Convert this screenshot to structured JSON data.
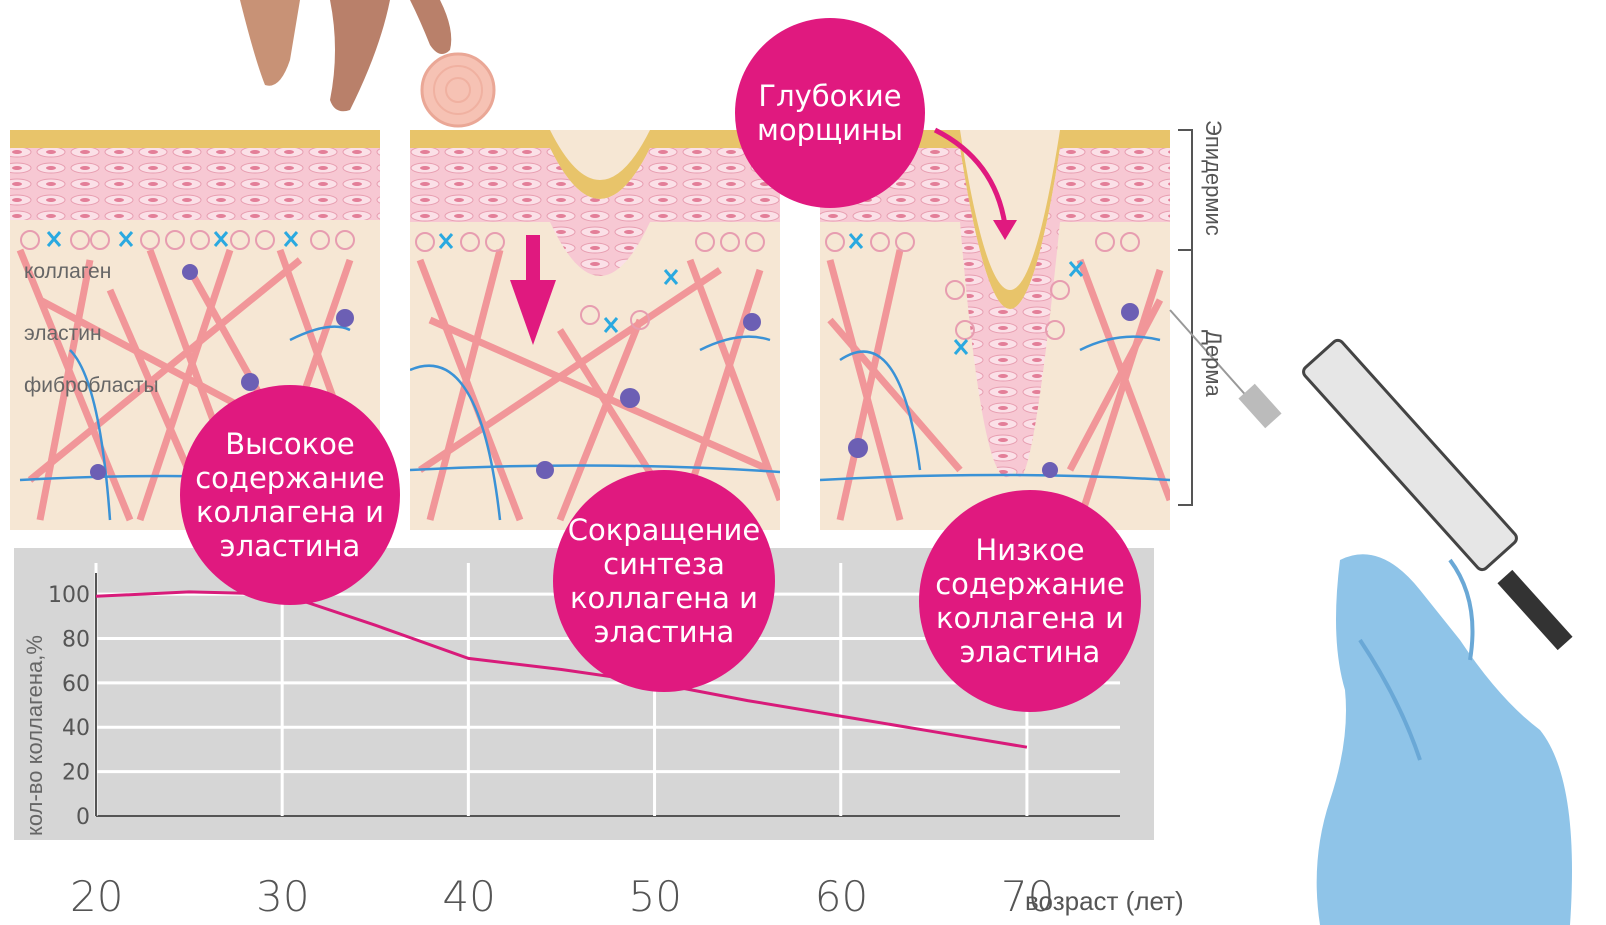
{
  "colors": {
    "accent": "#e0197f",
    "chart_bg": "#d6d6d6",
    "grid": "#ffffff",
    "line": "#d81b7a",
    "skin": "#f6e7d4",
    "epidermis": "#f1b9c8",
    "gold": "#e8c46a",
    "fiber": "#f07b86",
    "vessel": "#3a92d6",
    "cell": "#6c5fb4"
  },
  "bubbles": {
    "high": [
      "Высокое",
      "содержание",
      "коллагена и",
      "эластина"
    ],
    "reduce": [
      "Сокращение",
      "синтеза",
      "коллагена и",
      "эластина"
    ],
    "low": [
      "Низкое",
      "содержание",
      "коллагена и",
      "эластина"
    ],
    "wrinkles": [
      "Глубокие",
      "морщины"
    ]
  },
  "skin_labels": {
    "collagen": "коллаген",
    "elastin": "эластин",
    "fibroblasts": "фибробласты"
  },
  "layer_labels": {
    "epidermis": "Эпидермис",
    "dermis": "Дерма"
  },
  "chart_data": {
    "type": "line",
    "x": [
      20,
      25,
      30,
      35,
      40,
      45,
      50,
      55,
      60,
      65,
      70
    ],
    "y": [
      99,
      101,
      100,
      86,
      71,
      66,
      60,
      52,
      45,
      38,
      31
    ],
    "xticks": [
      "20",
      "30",
      "40",
      "50",
      "60",
      "70"
    ],
    "yticks": [
      "0",
      "20",
      "40",
      "60",
      "80",
      "100"
    ],
    "xlabel": "возраст (лет)",
    "ylabel": "кол-во коллагена,%",
    "xlim": [
      20,
      75
    ],
    "ylim": [
      0,
      105
    ],
    "grid": true
  }
}
